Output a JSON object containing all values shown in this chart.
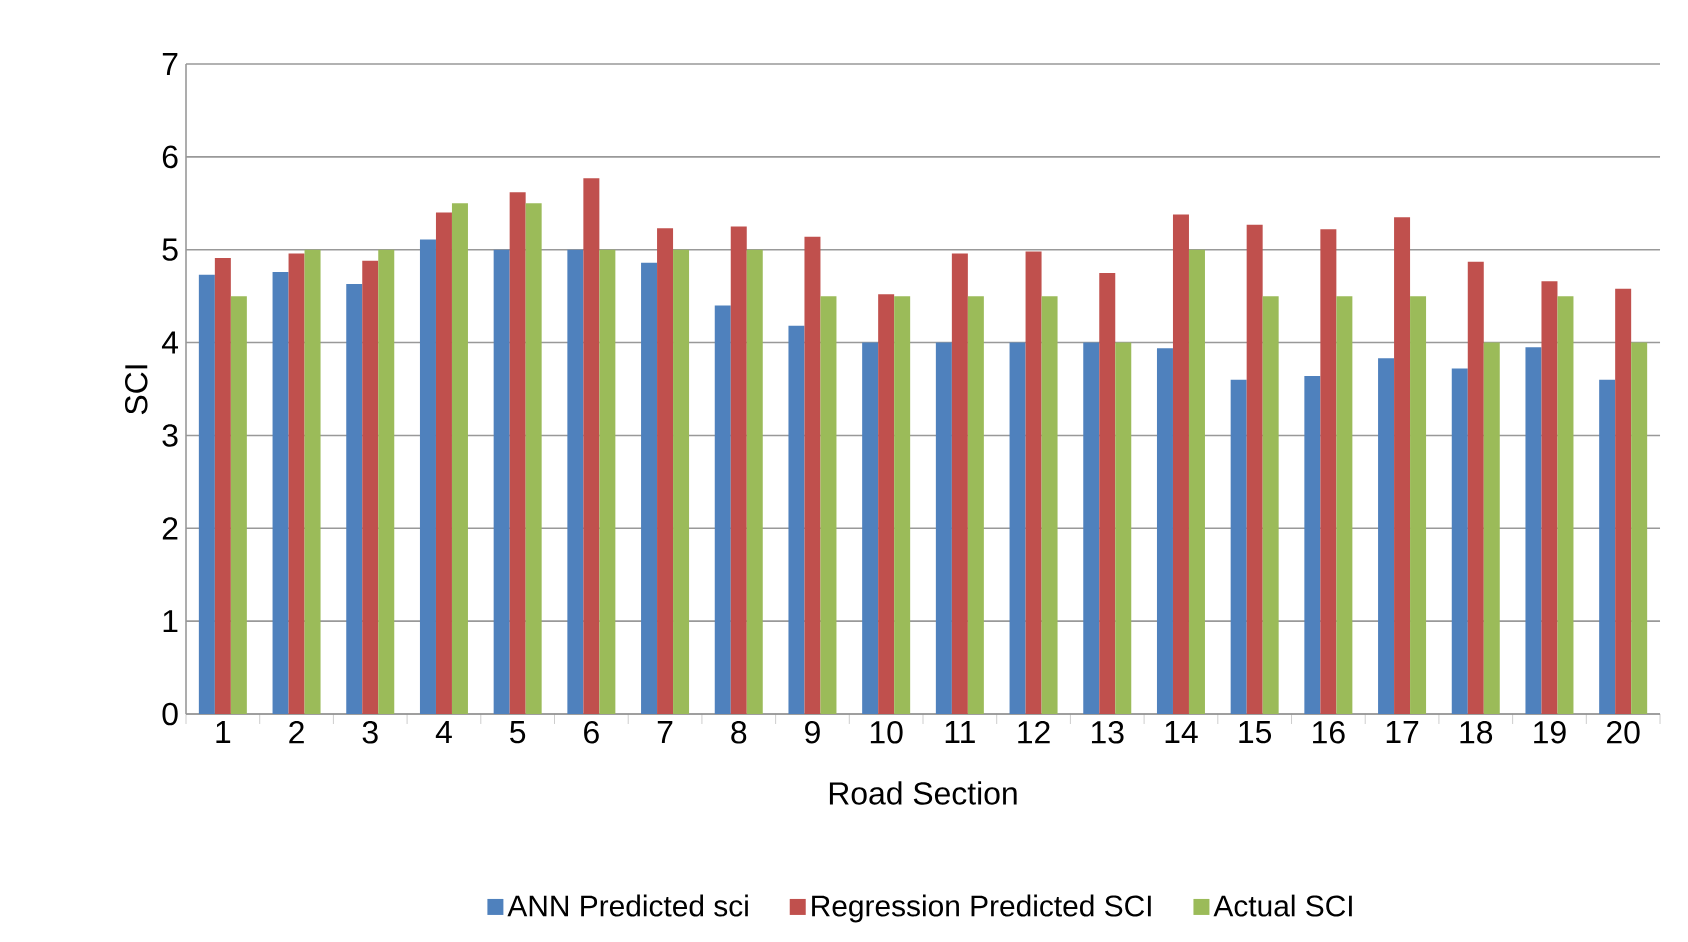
{
  "chart_data": {
    "type": "bar",
    "xlabel": "Road Section",
    "ylabel": "SCI",
    "categories": [
      "1",
      "2",
      "3",
      "4",
      "5",
      "6",
      "7",
      "8",
      "9",
      "10",
      "11",
      "12",
      "13",
      "14",
      "15",
      "16",
      "17",
      "18",
      "19",
      "20"
    ],
    "series": [
      {
        "name": "ANN Predicted sci",
        "color": "#4f81bd",
        "values": [
          4.73,
          4.76,
          4.63,
          5.11,
          5.0,
          5.0,
          4.86,
          4.4,
          4.18,
          4.0,
          4.0,
          4.0,
          4.0,
          3.94,
          3.6,
          3.64,
          3.83,
          3.72,
          3.95,
          3.6
        ]
      },
      {
        "name": "Regression Predicted SCI",
        "color": "#c0504d",
        "values": [
          4.91,
          4.96,
          4.88,
          5.4,
          5.62,
          5.77,
          5.23,
          5.25,
          5.14,
          4.52,
          4.96,
          4.98,
          4.75,
          5.38,
          5.27,
          5.22,
          5.35,
          4.87,
          4.66,
          4.58
        ]
      },
      {
        "name": "Actual SCI",
        "color": "#9bbb59",
        "values": [
          4.5,
          5,
          5,
          5.5,
          5.5,
          5,
          5,
          5,
          4.5,
          4.5,
          4.5,
          4.5,
          4,
          5,
          4.5,
          4.5,
          4.5,
          4,
          4.5,
          4
        ]
      }
    ],
    "ylim": [
      0,
      7
    ],
    "yticks": [
      0,
      1,
      2,
      3,
      4,
      5,
      6,
      7
    ],
    "grid": "y",
    "legend": "bottom"
  }
}
